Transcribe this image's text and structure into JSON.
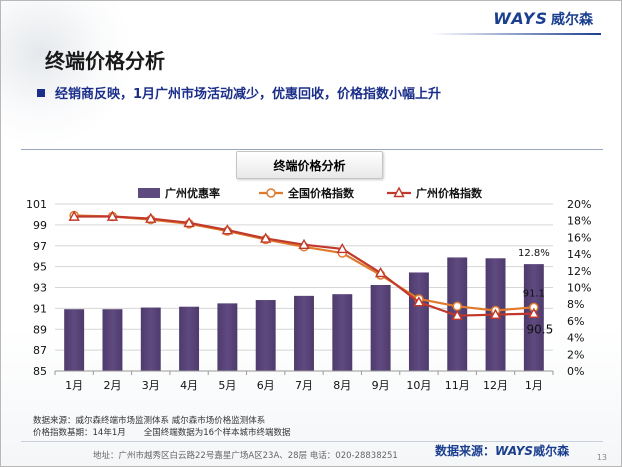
{
  "header": {
    "logo_latin": "WAYS",
    "logo_cn": "威尔森",
    "title": "终端价格分析",
    "bullet": "经销商反映，1月广州市场活动减少，优惠回收，价格指数小幅上升"
  },
  "chart_data": {
    "type": "bar",
    "title": "终端价格分析",
    "categories": [
      "1月",
      "2月",
      "3月",
      "4月",
      "5月",
      "6月",
      "7月",
      "8月",
      "9月",
      "10月",
      "11月",
      "12月",
      "1月"
    ],
    "series": [
      {
        "name": "广州优惠率",
        "type": "bar",
        "axis": "right",
        "values": [
          7.4,
          7.4,
          7.6,
          7.7,
          8.1,
          8.5,
          9.0,
          9.2,
          10.3,
          11.8,
          13.6,
          13.5,
          12.8
        ],
        "color": "#5f4a80"
      },
      {
        "name": "全国价格指数",
        "type": "line",
        "axis": "left",
        "values": [
          99.9,
          99.8,
          99.5,
          99.1,
          98.4,
          97.6,
          96.9,
          96.3,
          94.2,
          91.9,
          91.2,
          90.8,
          91.1
        ],
        "color": "#e07b2e"
      },
      {
        "name": "广州价格指数",
        "type": "line",
        "axis": "left",
        "values": [
          99.8,
          99.8,
          99.6,
          99.2,
          98.5,
          97.7,
          97.1,
          96.7,
          94.4,
          91.6,
          90.3,
          90.4,
          90.5
        ],
        "color": "#c0392b"
      }
    ],
    "y_left": {
      "min": 85,
      "max": 101,
      "ticks": [
        "85",
        "87",
        "89",
        "91",
        "93",
        "95",
        "97",
        "99",
        "101"
      ]
    },
    "y_right": {
      "min": 0,
      "max": 20,
      "ticks": [
        "0%",
        "2%",
        "4%",
        "6%",
        "8%",
        "10%",
        "12%",
        "14%",
        "16%",
        "18%",
        "20%"
      ]
    },
    "data_labels": {
      "bar_last": "12.8%",
      "national_last": "91.1",
      "guangzhou_last": "90.5"
    },
    "legend_position": "top",
    "grid": true
  },
  "notes": {
    "line1": "数据来源：威尔森终端市场监测体系  威尔森市场价格监测体系",
    "line2a": "价格指数基期：14年1月",
    "line2b": "全国终端数据为16个样本城市终端数据"
  },
  "footer": {
    "address": "地址：广州市越秀区白云路22号嘉星广场A区23A、28层   电话：020-28838251",
    "source_label": "数据来源：",
    "source_brand": "WAYS",
    "source_cn": "威尔森",
    "page": "13"
  }
}
